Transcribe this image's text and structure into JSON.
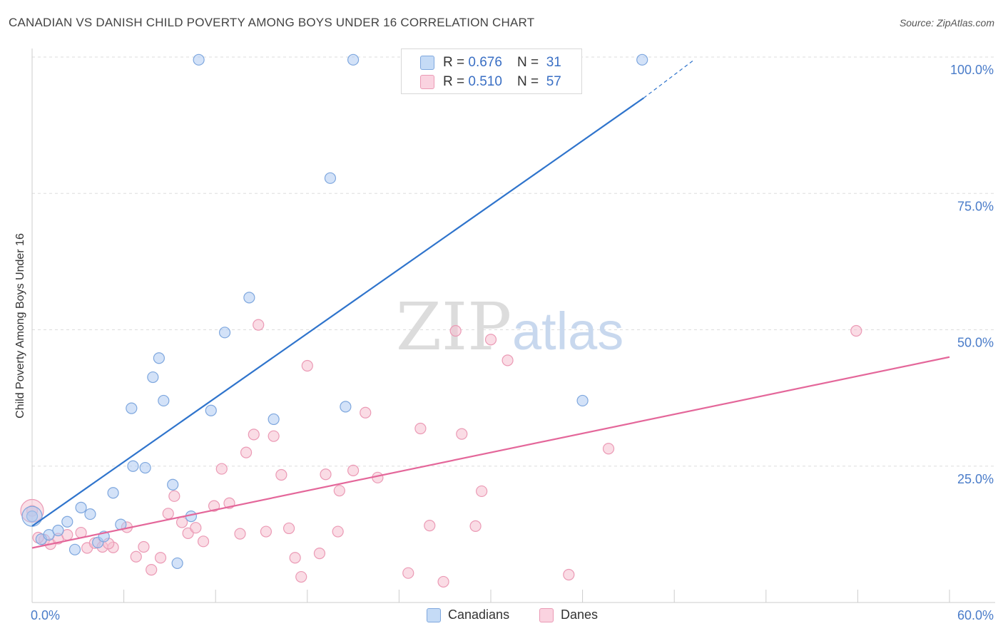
{
  "title": "CANADIAN VS DANISH CHILD POVERTY AMONG BOYS UNDER 16 CORRELATION CHART",
  "source": "Source: ZipAtlas.com",
  "watermark": {
    "zip": "ZIP",
    "atlas": "atlas"
  },
  "legend": {
    "r_label": "R = ",
    "n_label": "N = ",
    "rows": [
      {
        "r": "0.676",
        "n": "31"
      },
      {
        "r": "0.510",
        "n": "57"
      }
    ]
  },
  "bottom_legend": [
    "Canadians",
    "Danes"
  ],
  "colors": {
    "canadians_fill": "#aecbf2",
    "canadians_stroke": "#7ea7de",
    "canadians_line": "#2f74cc",
    "danes_fill": "#f6bfd0",
    "danes_stroke": "#eb9ab5",
    "danes_line": "#e4679a",
    "tick_text": "#4a7cc9"
  },
  "chart_data": {
    "type": "scatter",
    "title": "CANADIAN VS DANISH CHILD POVERTY AMONG BOYS UNDER 16 CORRELATION CHART",
    "xlabel": "",
    "ylabel": "Child Poverty Among Boys Under 16",
    "xlim": [
      0,
      60
    ],
    "ylim": [
      0,
      100
    ],
    "x_tick_labels": [
      "0.0%",
      "60.0%"
    ],
    "y_ticks": [
      25,
      50,
      75,
      100
    ],
    "y_tick_labels": [
      "25.0%",
      "50.0%",
      "75.0%",
      "100.0%"
    ],
    "series": [
      {
        "name": "Canadians",
        "r": 0.676,
        "n": 31,
        "points": [
          [
            0.0,
            15.8
          ],
          [
            0.6,
            11.6
          ],
          [
            1.1,
            12.4
          ],
          [
            1.7,
            13.2
          ],
          [
            2.3,
            14.8
          ],
          [
            2.8,
            9.7
          ],
          [
            3.2,
            17.4
          ],
          [
            3.8,
            16.2
          ],
          [
            4.3,
            11.0
          ],
          [
            4.7,
            12.1
          ],
          [
            5.3,
            20.1
          ],
          [
            5.8,
            14.3
          ],
          [
            6.6,
            25.0
          ],
          [
            6.5,
            35.6
          ],
          [
            7.4,
            24.7
          ],
          [
            7.9,
            41.3
          ],
          [
            8.3,
            44.8
          ],
          [
            8.6,
            37.0
          ],
          [
            9.2,
            21.6
          ],
          [
            9.5,
            7.2
          ],
          [
            10.4,
            15.8
          ],
          [
            10.9,
            99.5
          ],
          [
            11.7,
            35.2
          ],
          [
            12.6,
            49.5
          ],
          [
            14.2,
            55.9
          ],
          [
            15.8,
            33.6
          ],
          [
            19.5,
            77.8
          ],
          [
            20.5,
            35.9
          ],
          [
            21.0,
            99.5
          ],
          [
            36.0,
            37.0
          ],
          [
            39.9,
            99.5
          ]
        ],
        "trend": {
          "x": [
            0,
            40
          ],
          "y": [
            14.0,
            92.5
          ],
          "dashed_to": [
            43.3,
            99.5
          ]
        }
      },
      {
        "name": "Danes",
        "r": 0.51,
        "n": 57,
        "points": [
          [
            0.0,
            16.8
          ],
          [
            0.8,
            11.5
          ],
          [
            1.2,
            10.7
          ],
          [
            1.7,
            11.7
          ],
          [
            2.3,
            12.4
          ],
          [
            3.2,
            12.8
          ],
          [
            3.6,
            10.0
          ],
          [
            4.1,
            10.9
          ],
          [
            4.6,
            10.2
          ],
          [
            5.3,
            10.1
          ],
          [
            5.0,
            10.8
          ],
          [
            6.2,
            13.8
          ],
          [
            6.8,
            8.4
          ],
          [
            7.3,
            10.2
          ],
          [
            7.8,
            6.0
          ],
          [
            8.4,
            8.2
          ],
          [
            8.9,
            16.3
          ],
          [
            9.3,
            19.5
          ],
          [
            9.8,
            14.7
          ],
          [
            10.2,
            12.7
          ],
          [
            10.7,
            13.7
          ],
          [
            11.2,
            11.2
          ],
          [
            11.9,
            17.7
          ],
          [
            12.4,
            24.5
          ],
          [
            12.9,
            18.2
          ],
          [
            13.6,
            12.6
          ],
          [
            14.0,
            27.5
          ],
          [
            14.5,
            30.8
          ],
          [
            14.8,
            50.9
          ],
          [
            15.3,
            13.0
          ],
          [
            15.8,
            30.5
          ],
          [
            16.3,
            23.4
          ],
          [
            16.8,
            13.6
          ],
          [
            17.2,
            8.2
          ],
          [
            17.6,
            4.7
          ],
          [
            18.0,
            43.4
          ],
          [
            18.8,
            9.0
          ],
          [
            19.2,
            23.5
          ],
          [
            20.0,
            13.0
          ],
          [
            20.1,
            20.5
          ],
          [
            21.0,
            24.2
          ],
          [
            21.8,
            34.8
          ],
          [
            22.6,
            22.9
          ],
          [
            24.6,
            5.4
          ],
          [
            25.4,
            31.9
          ],
          [
            26.0,
            14.1
          ],
          [
            26.9,
            3.8
          ],
          [
            27.7,
            49.8
          ],
          [
            28.1,
            30.9
          ],
          [
            29.0,
            14.0
          ],
          [
            29.4,
            20.4
          ],
          [
            30.0,
            48.2
          ],
          [
            31.1,
            44.4
          ],
          [
            35.1,
            5.1
          ],
          [
            37.7,
            28.2
          ],
          [
            53.9,
            49.8
          ],
          [
            0.4,
            11.9
          ]
        ],
        "trend": {
          "x": [
            0,
            60
          ],
          "y": [
            10.0,
            45.0
          ]
        }
      }
    ]
  }
}
